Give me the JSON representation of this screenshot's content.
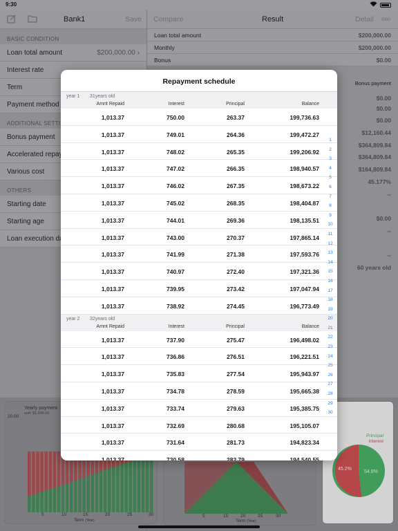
{
  "status": {
    "time": "9:30"
  },
  "nav_left": {
    "title": "Bank1",
    "save": "Save"
  },
  "nav_right": {
    "compare": "Compare",
    "title": "Result",
    "detail": "Detail",
    "more": "ooo"
  },
  "left": {
    "sec_basic": "BASIC CONDITION",
    "basic": [
      {
        "label": "Loan total amount",
        "value": "$200,000.00"
      },
      {
        "label": "Interest rate",
        "value": ""
      },
      {
        "label": "Term",
        "value": ""
      },
      {
        "label": "Payment method",
        "value": ""
      }
    ],
    "sec_additional": "ADDITIONAL SETTING",
    "additional": [
      {
        "label": "Bonus payment"
      },
      {
        "label": "Accelerated repay"
      },
      {
        "label": "Various cost"
      }
    ],
    "sec_others": "OTHERS",
    "others": [
      {
        "label": "Starting date"
      },
      {
        "label": "Starting age"
      },
      {
        "label": "Loan execution da"
      }
    ]
  },
  "right": {
    "rows": [
      {
        "label": "Loan total amount",
        "value": "$200,000.00"
      },
      {
        "label": "Monthly",
        "value": "$200,000.00"
      },
      {
        "label": "Bonus",
        "value": "$0.00"
      }
    ],
    "bonus_payment_label": "Bonus payment",
    "values": [
      "$0.00",
      "$0.00",
      "$0.00",
      "$12,160.44",
      "$364,809.84",
      "$364,809.84",
      "$164,809.84",
      "45.177%",
      "--",
      "$0.00",
      "--",
      "--",
      "60 years old"
    ]
  },
  "charts": {
    "yearly_title": "Yearly payment",
    "yearly_unit": "unit: $1,000.00",
    "y_top": "20.00",
    "x_ticks": [
      "5",
      "10",
      "15",
      "20",
      "25",
      "30"
    ],
    "x_label": "Term",
    "x_unit": "(Year)",
    "legend_principal": "Principal",
    "legend_interest": "Interest",
    "pie_interest_pct": "45.2%",
    "pie_principal_pct": "54.8%",
    "color_principal": "#3cb55c",
    "color_interest": "#d84545"
  },
  "modal": {
    "title": "Repayment schedule",
    "cols": {
      "amount": "Amnt Repaid",
      "interest": "Interest",
      "principal": "Principal",
      "balance": "Balance"
    },
    "year1": {
      "label": "year 1",
      "age": "31years old"
    },
    "year2": {
      "label": "year 2",
      "age": "32years old"
    },
    "rows1": [
      [
        "1,013.37",
        "750.00",
        "263.37",
        "199,736.63"
      ],
      [
        "1,013.37",
        "749.01",
        "264.36",
        "199,472.27"
      ],
      [
        "1,013.37",
        "748.02",
        "265.35",
        "199,206.92"
      ],
      [
        "1,013.37",
        "747.02",
        "266.35",
        "198,940.57"
      ],
      [
        "1,013.37",
        "746.02",
        "267.35",
        "198,673.22"
      ],
      [
        "1,013.37",
        "745.02",
        "268.35",
        "198,404.87"
      ],
      [
        "1,013.37",
        "744.01",
        "269.36",
        "198,135.51"
      ],
      [
        "1,013.37",
        "743.00",
        "270.37",
        "197,865.14"
      ],
      [
        "1,013.37",
        "741.99",
        "271.38",
        "197,593.76"
      ],
      [
        "1,013.37",
        "740.97",
        "272.40",
        "197,321.36"
      ],
      [
        "1,013.37",
        "739.95",
        "273.42",
        "197,047.94"
      ],
      [
        "1,013.37",
        "738.92",
        "274.45",
        "196,773.49"
      ]
    ],
    "rows2": [
      [
        "1,013.37",
        "737.90",
        "275.47",
        "196,498.02"
      ],
      [
        "1,013.37",
        "736.86",
        "276.51",
        "196,221.51"
      ],
      [
        "1,013.37",
        "735.83",
        "277.54",
        "195,943.97"
      ],
      [
        "1,013.37",
        "734.78",
        "278.59",
        "195,665.38"
      ],
      [
        "1,013.37",
        "733.74",
        "279.63",
        "195,385.75"
      ],
      [
        "1,013.37",
        "732.69",
        "280.68",
        "195,105.07"
      ],
      [
        "1,013.37",
        "731.64",
        "281.73",
        "194,823.34"
      ],
      [
        "1,013.37",
        "730.58",
        "282.79",
        "194,540.55"
      ]
    ],
    "index": [
      "1",
      "2",
      "3",
      "4",
      "5",
      "6",
      "7",
      "8",
      "9",
      "10",
      "11",
      "12",
      "13",
      "14",
      "15",
      "16",
      "17",
      "18",
      "19",
      "20",
      "21",
      "22",
      "23",
      "24",
      "25",
      "26",
      "27",
      "28",
      "29",
      "30"
    ]
  }
}
